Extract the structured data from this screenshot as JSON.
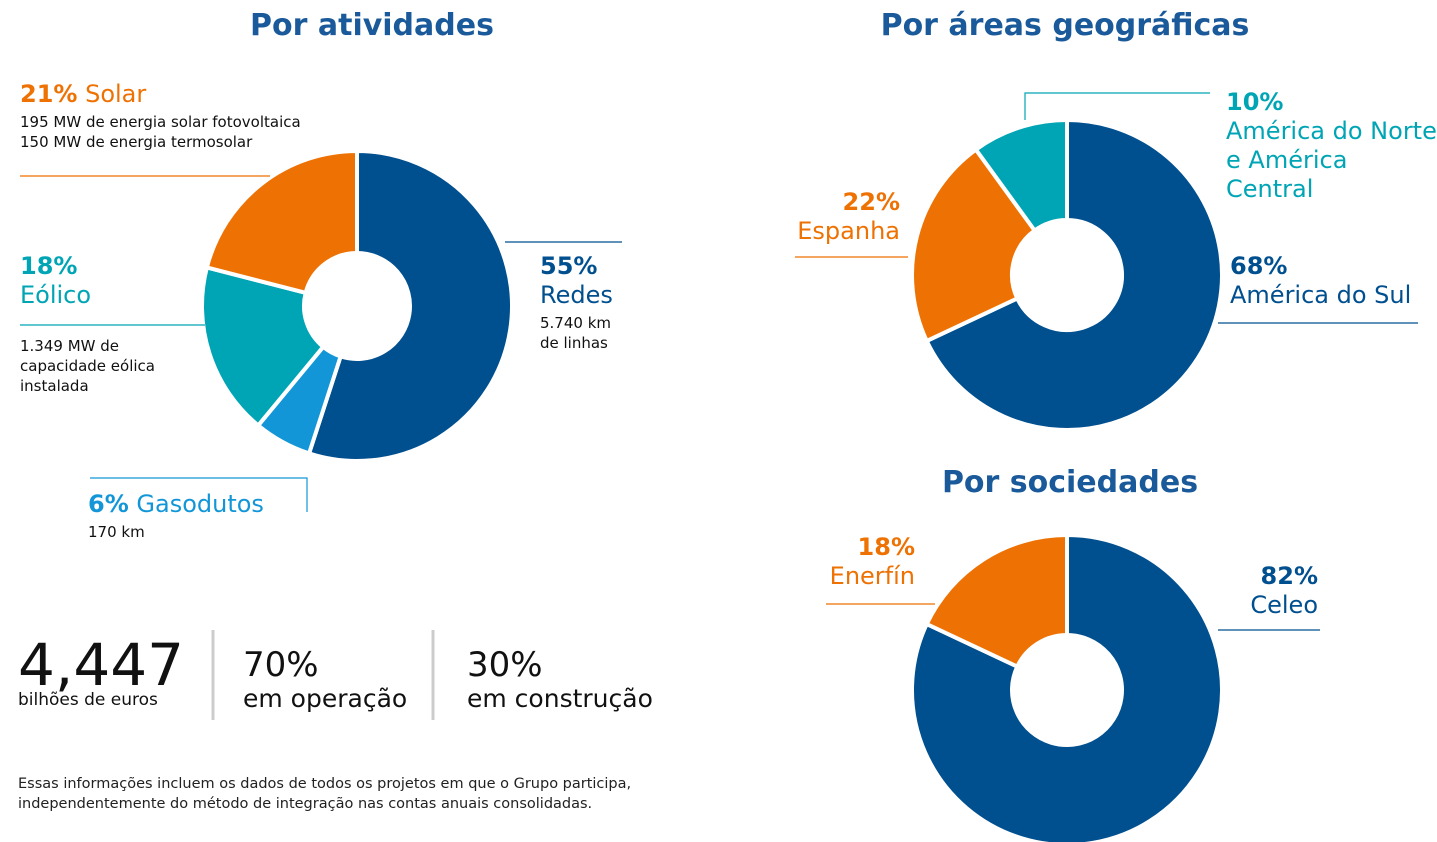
{
  "chart_data": [
    {
      "type": "donut",
      "title": "Por atividades",
      "categories": [
        "Redes",
        "Gasodutos",
        "Eólico",
        "Solar"
      ],
      "values": [
        55,
        6,
        18,
        21
      ],
      "value_labels": [
        "55%",
        "6%",
        "18%",
        "21%"
      ],
      "colors": [
        "#004f8f",
        "#1396d8",
        "#00a5b5",
        "#ee7203"
      ],
      "details": [
        [
          "5.740 km",
          "de linhas"
        ],
        [
          "170 km"
        ],
        [
          "1.349 MW de",
          "capacidade eólica",
          "instalada"
        ],
        [
          "195 MW de energia solar fotovoltaica",
          "150 MW de energia termosolar"
        ]
      ]
    },
    {
      "type": "donut",
      "title": "Por áreas geográficas",
      "categories": [
        "América do Sul",
        "Espanha",
        "América do Norte e América Central"
      ],
      "values": [
        68,
        22,
        10
      ],
      "value_labels": [
        "68%",
        "22%",
        "10%"
      ],
      "colors": [
        "#004f8f",
        "#ee7203",
        "#00a5b5"
      ]
    },
    {
      "type": "donut",
      "title": "Por sociedades",
      "categories": [
        "Celeo",
        "Enerfín"
      ],
      "values": [
        82,
        18
      ],
      "value_labels": [
        "82%",
        "18%"
      ],
      "colors": [
        "#004f8f",
        "#ee7203"
      ]
    }
  ],
  "stats": [
    {
      "value": "4,447",
      "label": "bilhões de euros"
    },
    {
      "value": "70%",
      "label": "em operação"
    },
    {
      "value": "30%",
      "label": "em construção"
    }
  ],
  "footnote": "Essas informações incluem os dados de todos os projetos em que o Grupo participa, independentemente do método de integração nas contas anuais consolidadas."
}
